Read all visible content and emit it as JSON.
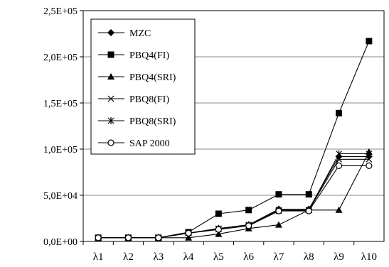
{
  "chart_data": {
    "type": "line",
    "categories": [
      "λ1",
      "λ2",
      "λ3",
      "λ4",
      "λ5",
      "λ6",
      "λ7",
      "λ8",
      "λ9",
      "λ10"
    ],
    "yticks": [
      "0,0E+00",
      "5,0E+04",
      "1,0E+05",
      "1,5E+05",
      "2,0E+05",
      "2,5E+05"
    ],
    "ylim": [
      0,
      250000
    ],
    "grid": true,
    "legend_position": "top-left",
    "series": [
      {
        "name": "MZC",
        "marker": "diamond",
        "values": [
          4000,
          4000,
          4000,
          9000,
          14000,
          18000,
          35000,
          35000,
          92000,
          92000
        ]
      },
      {
        "name": "PBQ4(FI)",
        "marker": "square",
        "values": [
          4000,
          4000,
          4000,
          10000,
          30000,
          34000,
          51000,
          51000,
          139000,
          217000
        ]
      },
      {
        "name": "PBQ4(SRI)",
        "marker": "triangle",
        "values": [
          4000,
          4000,
          4000,
          4000,
          8000,
          14000,
          18000,
          34000,
          34000,
          97000
        ]
      },
      {
        "name": "PBQ8(FI)",
        "marker": "x",
        "values": [
          4000,
          4000,
          4000,
          9000,
          13000,
          17000,
          33000,
          34000,
          89000,
          89000
        ]
      },
      {
        "name": "PBQ8(SRI)",
        "marker": "star",
        "values": [
          4000,
          4000,
          4000,
          9000,
          14000,
          18000,
          34000,
          34000,
          95000,
          95000
        ]
      },
      {
        "name": "SAP 2000",
        "marker": "circle",
        "values": [
          4000,
          4000,
          4000,
          9000,
          13000,
          17000,
          33000,
          33000,
          82000,
          82000
        ]
      }
    ]
  }
}
